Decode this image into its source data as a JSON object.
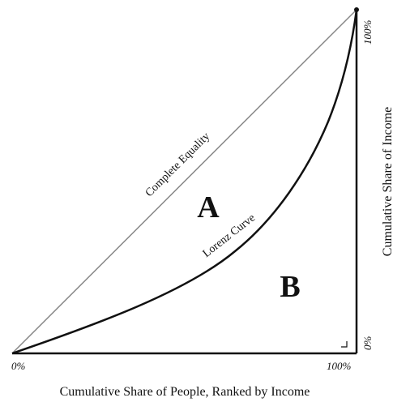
{
  "diagram": {
    "equality_label": "Complete Equality",
    "curve_label": "Lorenz Curve",
    "area_a": "A",
    "area_b": "B",
    "x_axis": {
      "title": "Cumulative Share of People, Ranked by Income",
      "start": "0%",
      "end": "100%"
    },
    "y_axis": {
      "title": "Cumulative Share of Income",
      "start": "0%",
      "end": "100%"
    }
  }
}
